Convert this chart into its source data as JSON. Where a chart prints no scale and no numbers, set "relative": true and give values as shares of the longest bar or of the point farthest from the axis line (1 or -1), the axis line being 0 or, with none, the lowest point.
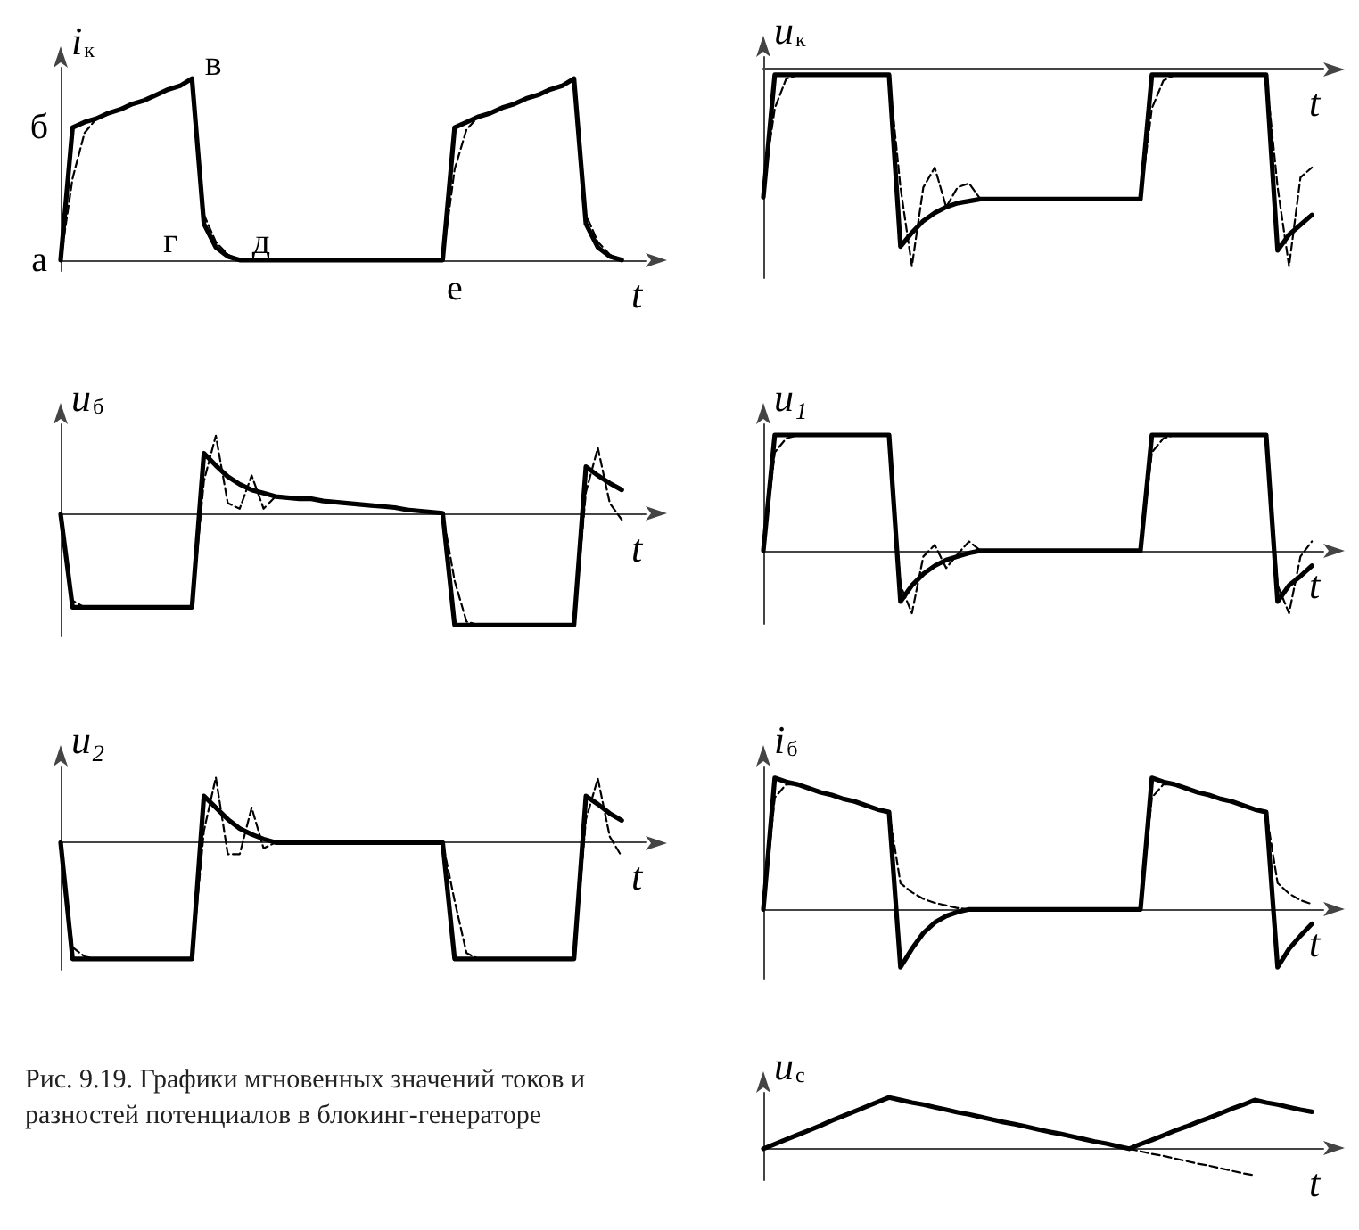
{
  "chart_data": [
    {
      "type": "line",
      "relative": true,
      "ylabel": "i$_{к}$",
      "xlabel": "t",
      "marker": "none",
      "categories": [
        null,
        null,
        null,
        null,
        null,
        null,
        null,
        null,
        null,
        null,
        null,
        null,
        null,
        null,
        null,
        null,
        null,
        null,
        null,
        null,
        null,
        null,
        null,
        null,
        null,
        null,
        null,
        null,
        null,
        null,
        null,
        null,
        null,
        null,
        null,
        null,
        null,
        null,
        null,
        null,
        null,
        null,
        null,
        null,
        null,
        null,
        null,
        null,
        null,
        null
      ],
      "annotations": [
        "а",
        "б",
        "в",
        "г",
        "д",
        "е",
        "Рис. 9.19. Графики мгновенных значений токов и разностей потенциалов в блокинг-генераторе"
      ],
      "series": [
        {
          "color": "#000000",
          "line_style": "solid",
          "values": [
            0,
            0.73,
            0.76,
            0.78,
            0.81,
            0.83,
            0.86,
            0.88,
            0.91,
            0.94,
            0.96,
            1,
            0.2,
            0.07,
            0.02,
            0,
            0,
            0,
            0,
            0,
            0,
            0,
            0,
            0,
            0,
            0,
            0,
            0,
            0,
            0,
            0,
            0,
            0,
            0.73,
            0.76,
            0.79,
            0.81,
            0.84,
            0.86,
            0.89,
            0.91,
            0.94,
            0.96,
            1,
            0.2,
            0.07,
            0.02,
            0,
            null,
            null
          ]
        },
        {
          "color": "#000000",
          "line_style": "dashed",
          "values": [
            0,
            0.45,
            0.7,
            0.78,
            0.81,
            0.83,
            0.86,
            0.88,
            0.91,
            0.94,
            0.96,
            1,
            0.25,
            0.1,
            0.03,
            0,
            0,
            0,
            0,
            0,
            0,
            0,
            0,
            0,
            0,
            0,
            0,
            0,
            0,
            0,
            0,
            0,
            0,
            0.5,
            0.72,
            0.79,
            0.81,
            0.84,
            0.86,
            0.89,
            0.91,
            0.94,
            0.96,
            1,
            0.25,
            0.1,
            0.03,
            0,
            null,
            null
          ]
        }
      ]
    },
    {
      "type": "line",
      "relative": true,
      "ylabel": "u$_{к}$",
      "xlabel": "t",
      "marker": "none",
      "categories": [
        null,
        null,
        null,
        null,
        null,
        null,
        null,
        null,
        null,
        null,
        null,
        null,
        null,
        null,
        null,
        null,
        null,
        null,
        null,
        null,
        null,
        null,
        null,
        null,
        null,
        null,
        null,
        null,
        null,
        null,
        null,
        null,
        null,
        null,
        null,
        null,
        null,
        null,
        null,
        null,
        null,
        null,
        null,
        null,
        null,
        null,
        null,
        null,
        null,
        null
      ],
      "series": [
        {
          "color": "#000000",
          "line_style": "solid",
          "values": [
            -0.65,
            -0.03,
            -0.03,
            -0.03,
            -0.03,
            -0.03,
            -0.03,
            -0.03,
            -0.03,
            -0.03,
            -0.03,
            -0.03,
            -0.9,
            -0.83,
            -0.77,
            -0.73,
            -0.7,
            -0.68,
            -0.67,
            -0.66,
            -0.66,
            -0.66,
            -0.66,
            -0.66,
            -0.66,
            -0.66,
            -0.66,
            -0.66,
            -0.66,
            -0.66,
            -0.66,
            -0.66,
            -0.66,
            -0.66,
            -0.03,
            -0.03,
            -0.03,
            -0.03,
            -0.03,
            -0.03,
            -0.03,
            -0.03,
            -0.03,
            -0.03,
            -0.03,
            -0.92,
            -0.84,
            -0.79,
            -0.74,
            null
          ]
        },
        {
          "color": "#000000",
          "line_style": "dashed",
          "values": [
            -0.6,
            -0.2,
            -0.05,
            -0.03,
            -0.03,
            -0.03,
            -0.03,
            -0.03,
            -0.03,
            -0.03,
            -0.03,
            -0.03,
            -0.6,
            -1,
            -0.6,
            -0.5,
            -0.7,
            -0.6,
            -0.58,
            -0.66,
            -0.66,
            -0.66,
            -0.66,
            -0.66,
            -0.66,
            -0.66,
            -0.66,
            -0.66,
            -0.66,
            -0.66,
            -0.66,
            -0.66,
            -0.66,
            -0.66,
            -0.2,
            -0.06,
            -0.03,
            -0.03,
            -0.03,
            -0.03,
            -0.03,
            -0.03,
            -0.03,
            -0.03,
            -0.03,
            -0.6,
            -1,
            -0.55,
            -0.5,
            null
          ]
        }
      ]
    },
    {
      "type": "line",
      "relative": true,
      "ylabel": "u$_{б}$",
      "xlabel": "t",
      "marker": "none",
      "categories": [
        null,
        null,
        null,
        null,
        null,
        null,
        null,
        null,
        null,
        null,
        null,
        null,
        null,
        null,
        null,
        null,
        null,
        null,
        null,
        null,
        null,
        null,
        null,
        null,
        null,
        null,
        null,
        null,
        null,
        null,
        null,
        null,
        null,
        null,
        null,
        null,
        null,
        null,
        null,
        null,
        null,
        null,
        null,
        null,
        null,
        null,
        null,
        null,
        null,
        null
      ],
      "series": [
        {
          "color": "#000000",
          "line_style": "solid",
          "values": [
            0,
            -0.84,
            -0.84,
            -0.84,
            -0.84,
            -0.84,
            -0.84,
            -0.84,
            -0.84,
            -0.84,
            -0.84,
            -0.84,
            0.55,
            0.44,
            0.34,
            0.27,
            0.22,
            0.19,
            0.16,
            0.15,
            0.14,
            0.14,
            0.12,
            0.11,
            0.1,
            0.09,
            0.08,
            0.07,
            0.06,
            0.04,
            0.03,
            0.02,
            0.01,
            -1,
            -1,
            -1,
            -1,
            -1,
            -1,
            -1,
            -1,
            -1,
            -1,
            -1,
            0.43,
            0.35,
            0.28,
            0.22,
            null,
            null
          ]
        },
        {
          "color": "#000000",
          "line_style": "dashed",
          "values": [
            0,
            -0.78,
            -0.84,
            -0.84,
            -0.84,
            -0.84,
            -0.84,
            -0.84,
            -0.84,
            -0.84,
            -0.84,
            -0.84,
            0.3,
            0.71,
            0.1,
            0.05,
            0.35,
            0.05,
            0.16,
            0.15,
            0.14,
            0.14,
            0.12,
            0.11,
            0.1,
            0.09,
            0.08,
            0.07,
            0.06,
            0.04,
            0.03,
            0.02,
            0.01,
            -0.6,
            -0.97,
            -1,
            -1,
            -1,
            -1,
            -1,
            -1,
            -1,
            -1,
            -1,
            0.2,
            0.6,
            0.1,
            -0.05,
            null,
            null
          ]
        }
      ]
    },
    {
      "type": "line",
      "relative": true,
      "ylabel": "u₁",
      "xlabel": "t",
      "marker": "none",
      "categories": [
        null,
        null,
        null,
        null,
        null,
        null,
        null,
        null,
        null,
        null,
        null,
        null,
        null,
        null,
        null,
        null,
        null,
        null,
        null,
        null,
        null,
        null,
        null,
        null,
        null,
        null,
        null,
        null,
        null,
        null,
        null,
        null,
        null,
        null,
        null,
        null,
        null,
        null,
        null,
        null,
        null,
        null,
        null,
        null,
        null,
        null,
        null,
        null,
        null,
        null
      ],
      "series": [
        {
          "color": "#000000",
          "line_style": "solid",
          "values": [
            0,
            1,
            1,
            1,
            1,
            1,
            1,
            1,
            1,
            1,
            1,
            1,
            -0.44,
            -0.3,
            -0.2,
            -0.13,
            -0.08,
            -0.05,
            -0.02,
            0,
            0,
            0,
            0,
            0,
            0,
            0,
            0,
            0,
            0,
            0,
            0,
            0,
            0,
            0,
            1,
            1,
            1,
            1,
            1,
            1,
            1,
            1,
            1,
            1,
            1,
            -0.44,
            -0.3,
            -0.22,
            -0.13,
            null
          ]
        },
        {
          "color": "#000000",
          "line_style": "dashed",
          "values": [
            0,
            0.85,
            0.97,
            1,
            1,
            1,
            1,
            1,
            1,
            1,
            1,
            1,
            -0.3,
            -0.54,
            -0.05,
            0.05,
            -0.15,
            -0.03,
            0.08,
            0,
            0,
            0,
            0,
            0,
            0,
            0,
            0,
            0,
            0,
            0,
            0,
            0,
            0,
            0,
            0.85,
            0.97,
            1,
            1,
            1,
            1,
            1,
            1,
            1,
            1,
            1,
            -0.3,
            -0.54,
            -0.05,
            0.08,
            null
          ]
        }
      ]
    },
    {
      "type": "line",
      "relative": true,
      "ylabel": "u₂",
      "xlabel": "t",
      "marker": "none",
      "categories": [
        null,
        null,
        null,
        null,
        null,
        null,
        null,
        null,
        null,
        null,
        null,
        null,
        null,
        null,
        null,
        null,
        null,
        null,
        null,
        null,
        null,
        null,
        null,
        null,
        null,
        null,
        null,
        null,
        null,
        null,
        null,
        null,
        null,
        null,
        null,
        null,
        null,
        null,
        null,
        null,
        null,
        null,
        null,
        null,
        null,
        null,
        null,
        null,
        null,
        null
      ],
      "series": [
        {
          "color": "#000000",
          "line_style": "solid",
          "values": [
            0,
            -1,
            -1,
            -1,
            -1,
            -1,
            -1,
            -1,
            -1,
            -1,
            -1,
            -1,
            0.4,
            0.3,
            0.2,
            0.12,
            0.07,
            0.03,
            0,
            0,
            0,
            0,
            0,
            0,
            0,
            0,
            0,
            0,
            0,
            0,
            0,
            0,
            0,
            -1,
            -1,
            -1,
            -1,
            -1,
            -1,
            -1,
            -1,
            -1,
            -1,
            -1,
            0.4,
            0.33,
            0.25,
            0.19,
            null,
            null
          ]
        },
        {
          "color": "#000000",
          "line_style": "dashed",
          "values": [
            0,
            -0.9,
            -0.98,
            -1,
            -1,
            -1,
            -1,
            -1,
            -1,
            -1,
            -1,
            -1,
            0.1,
            0.56,
            -0.1,
            -0.1,
            0.3,
            -0.05,
            0,
            0,
            0,
            0,
            0,
            0,
            0,
            0,
            0,
            0,
            0,
            0,
            0,
            0,
            0,
            -0.5,
            -0.95,
            -1,
            -1,
            -1,
            -1,
            -1,
            -1,
            -1,
            -1,
            -1,
            0.2,
            0.55,
            0.05,
            -0.12,
            null,
            null
          ]
        }
      ]
    },
    {
      "type": "line",
      "relative": true,
      "ylabel": "i$_{б}$",
      "xlabel": "t",
      "marker": "none",
      "categories": [
        null,
        null,
        null,
        null,
        null,
        null,
        null,
        null,
        null,
        null,
        null,
        null,
        null,
        null,
        null,
        null,
        null,
        null,
        null,
        null,
        null,
        null,
        null,
        null,
        null,
        null,
        null,
        null,
        null,
        null,
        null,
        null,
        null,
        null,
        null,
        null,
        null,
        null,
        null,
        null,
        null,
        null,
        null,
        null,
        null,
        null,
        null,
        null,
        null,
        null
      ],
      "series": [
        {
          "color": "#000000",
          "line_style": "solid",
          "values": [
            0,
            1,
            0.97,
            0.95,
            0.92,
            0.89,
            0.87,
            0.84,
            0.82,
            0.79,
            0.76,
            0.74,
            -0.44,
            -0.3,
            -0.18,
            -0.1,
            -0.05,
            -0.02,
            0,
            0,
            0,
            0,
            0,
            0,
            0,
            0,
            0,
            0,
            0,
            0,
            0,
            0,
            0,
            0,
            1,
            0.97,
            0.95,
            0.92,
            0.89,
            0.87,
            0.84,
            0.82,
            0.79,
            0.76,
            0.74,
            -0.44,
            -0.3,
            -0.2,
            -0.11,
            null
          ]
        },
        {
          "color": "#000000",
          "line_style": "dashed",
          "values": [
            0,
            0.85,
            0.95,
            0.95,
            0.92,
            0.89,
            0.87,
            0.84,
            0.82,
            0.79,
            0.76,
            0.74,
            0.2,
            0.13,
            0.08,
            0.05,
            0.03,
            0.01,
            0,
            0,
            0,
            0,
            0,
            0,
            0,
            0,
            0,
            0,
            0,
            0,
            0,
            0,
            0,
            0,
            0.85,
            0.95,
            0.95,
            0.92,
            0.89,
            0.87,
            0.84,
            0.82,
            0.79,
            0.76,
            0.74,
            0.2,
            0.12,
            0.07,
            0.04,
            null
          ]
        }
      ]
    },
    {
      "type": "line",
      "relative": true,
      "ylabel": "u$_{с}$",
      "xlabel": "t",
      "marker": "none",
      "categories": [
        null,
        null,
        null,
        null,
        null,
        null,
        null,
        null,
        null,
        null,
        null,
        null,
        null,
        null,
        null,
        null,
        null,
        null,
        null,
        null,
        null,
        null,
        null,
        null,
        null,
        null,
        null,
        null,
        null,
        null,
        null,
        null,
        null,
        null,
        null,
        null,
        null,
        null,
        null,
        null,
        null,
        null,
        null,
        null,
        null,
        null,
        null,
        null,
        null,
        null
      ],
      "series": [
        {
          "color": "#000000",
          "line_style": "solid",
          "values": [
            0,
            0.09,
            0.18,
            0.27,
            0.36,
            0.45,
            0.55,
            0.64,
            0.73,
            0.82,
            0.91,
            1,
            0.95,
            0.9,
            0.86,
            0.81,
            0.76,
            0.71,
            0.67,
            0.62,
            0.57,
            0.52,
            0.48,
            0.43,
            0.38,
            0.33,
            0.29,
            0.24,
            0.19,
            0.14,
            0.1,
            0.05,
            0,
            0.09,
            0.17,
            0.26,
            0.35,
            0.43,
            0.52,
            0.6,
            0.69,
            0.78,
            0.86,
            0.95,
            0.9,
            0.86,
            0.81,
            0.76,
            0.72,
            null
          ]
        },
        {
          "color": "#000000",
          "line_style": "dashed",
          "values": [
            null,
            null,
            null,
            null,
            null,
            null,
            null,
            null,
            null,
            null,
            null,
            null,
            null,
            null,
            null,
            null,
            null,
            null,
            null,
            null,
            null,
            null,
            null,
            null,
            null,
            null,
            null,
            null,
            null,
            null,
            null,
            null,
            0,
            -0.05,
            -0.1,
            -0.14,
            -0.19,
            -0.24,
            -0.29,
            -0.33,
            -0.38,
            -0.43,
            -0.48,
            -0.52,
            null,
            null,
            null,
            null,
            null,
            null
          ]
        }
      ]
    }
  ]
}
